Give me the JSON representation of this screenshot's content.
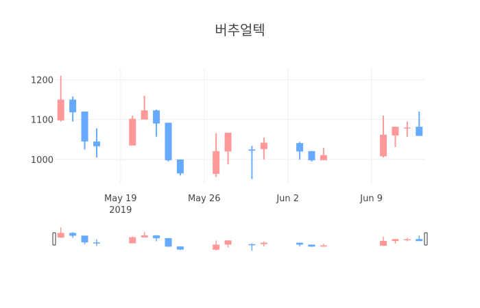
{
  "chart_data": {
    "type": "candlestick",
    "title": "버추얼텍",
    "xlabel": "",
    "ylabel": "",
    "ylim": [
      940,
      1228
    ],
    "y_ticks": [
      1000,
      1100,
      1200
    ],
    "x_ticks": [
      {
        "date": "2019-05-19",
        "label": "May 19",
        "sublabel": "2019"
      },
      {
        "date": "2019-05-26",
        "label": "May 26",
        "sublabel": ""
      },
      {
        "date": "2019-06-02",
        "label": "Jun 2",
        "sublabel": ""
      },
      {
        "date": "2019-06-09",
        "label": "Jun 9",
        "sublabel": ""
      }
    ],
    "xlim": [
      "2019-05-13T12:00",
      "2019-06-13T12:00"
    ],
    "grid": true,
    "legend": false,
    "rangeslider": true,
    "colors": {
      "increasing": "#FF9999",
      "decreasing": "#66AAFF"
    },
    "series": [
      {
        "date": "2019-05-14",
        "open": 1098,
        "high": 1210,
        "low": 1095,
        "close": 1150
      },
      {
        "date": "2019-05-15",
        "open": 1150,
        "high": 1158,
        "low": 1095,
        "close": 1118
      },
      {
        "date": "2019-05-16",
        "open": 1120,
        "high": 1120,
        "low": 1025,
        "close": 1045
      },
      {
        "date": "2019-05-17",
        "open": 1045,
        "high": 1078,
        "low": 1005,
        "close": 1033
      },
      {
        "date": "2019-05-20",
        "open": 1035,
        "high": 1110,
        "low": 1035,
        "close": 1102
      },
      {
        "date": "2019-05-21",
        "open": 1100,
        "high": 1160,
        "low": 1100,
        "close": 1123
      },
      {
        "date": "2019-05-22",
        "open": 1123,
        "high": 1125,
        "low": 1057,
        "close": 1090
      },
      {
        "date": "2019-05-23",
        "open": 1092,
        "high": 1092,
        "low": 995,
        "close": 998
      },
      {
        "date": "2019-05-24",
        "open": 1000,
        "high": 1000,
        "low": 960,
        "close": 965
      },
      {
        "date": "2019-05-27",
        "open": 964,
        "high": 1066,
        "low": 956,
        "close": 1021
      },
      {
        "date": "2019-05-28",
        "open": 1020,
        "high": 1067,
        "low": 988,
        "close": 1067
      },
      {
        "date": "2019-05-30",
        "open": 1025,
        "high": 1034,
        "low": 951,
        "close": 1022
      },
      {
        "date": "2019-05-31",
        "open": 1026,
        "high": 1055,
        "low": 1000,
        "close": 1042
      },
      {
        "date": "2019-06-03",
        "open": 1041,
        "high": 1044,
        "low": 1000,
        "close": 1020
      },
      {
        "date": "2019-06-04",
        "open": 1021,
        "high": 1021,
        "low": 995,
        "close": 998
      },
      {
        "date": "2019-06-05",
        "open": 998,
        "high": 1029,
        "low": 998,
        "close": 1011
      },
      {
        "date": "2019-06-10",
        "open": 1008,
        "high": 1110,
        "low": 1005,
        "close": 1062
      },
      {
        "date": "2019-06-11",
        "open": 1060,
        "high": 1082,
        "low": 1031,
        "close": 1082
      },
      {
        "date": "2019-06-12",
        "open": 1078,
        "high": 1095,
        "low": 1057,
        "close": 1080
      },
      {
        "date": "2019-06-13",
        "open": 1082,
        "high": 1120,
        "low": 1059,
        "close": 1059
      }
    ]
  }
}
